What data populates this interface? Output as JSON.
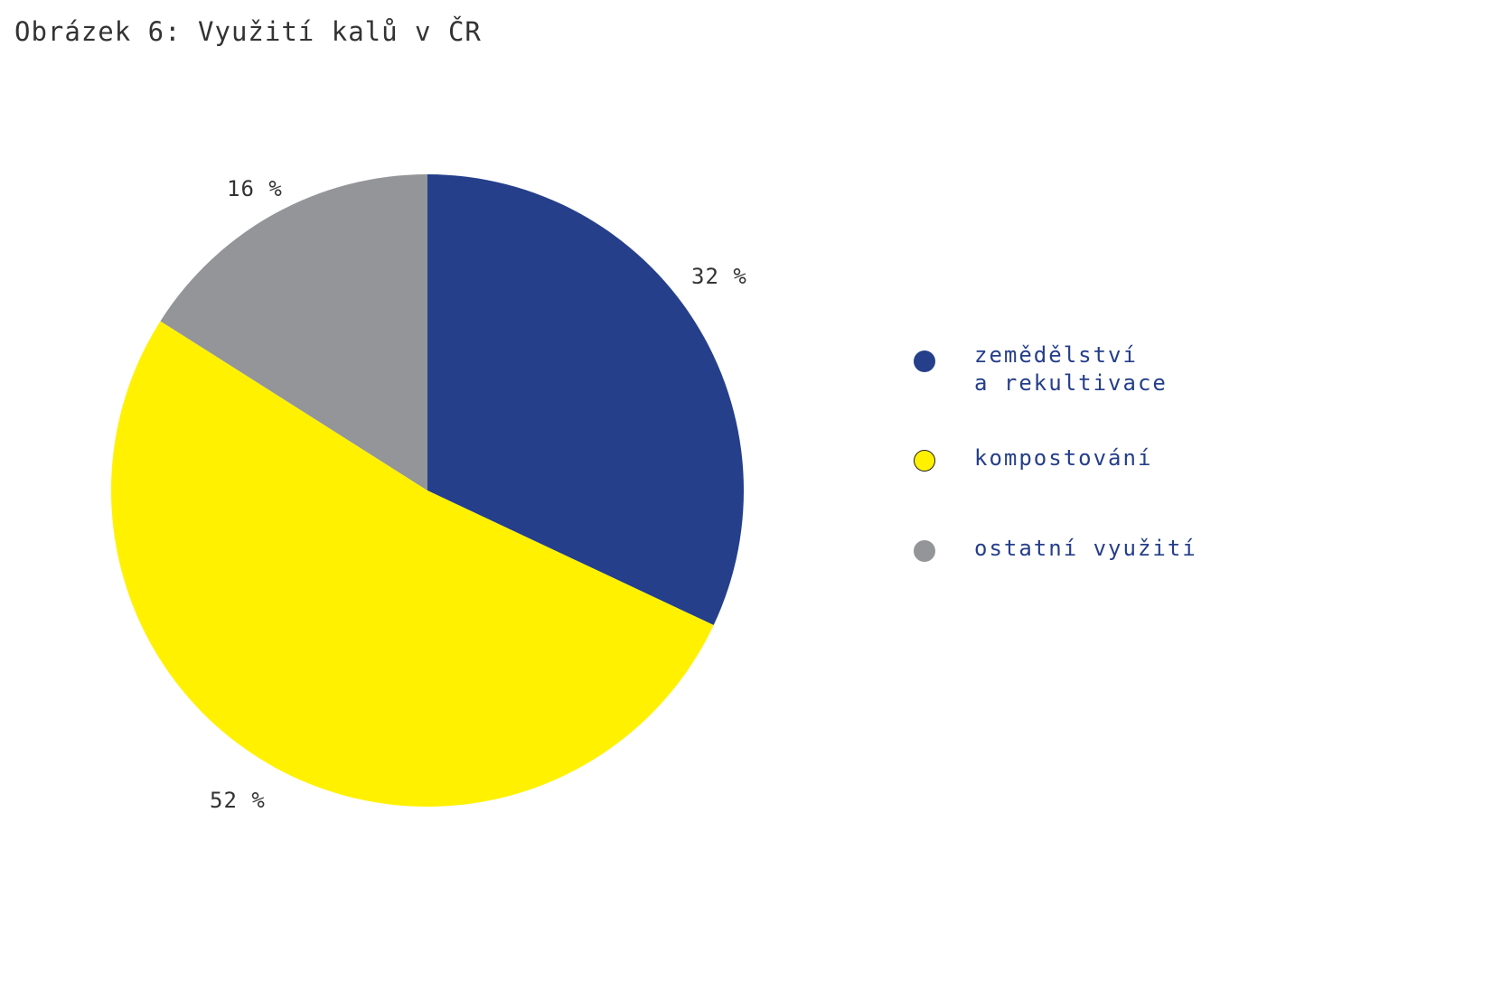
{
  "title": "Obrázek 6: Využití kalů v ČR",
  "chart_data": {
    "type": "pie",
    "title": "Obrázek 6: Využití kalů v ČR",
    "slices": [
      {
        "label": "zemědělství\na rekultivace",
        "value": 32,
        "value_label": "32 %",
        "color": "#253f8b"
      },
      {
        "label": "kompostování",
        "value": 52,
        "value_label": "52 %",
        "color": "#fff100"
      },
      {
        "label": "ostatní využití",
        "value": 16,
        "value_label": "16 %",
        "color": "#949598"
      }
    ],
    "start_angle": "12 o'clock",
    "direction": "clockwise",
    "legend_position": "right"
  }
}
